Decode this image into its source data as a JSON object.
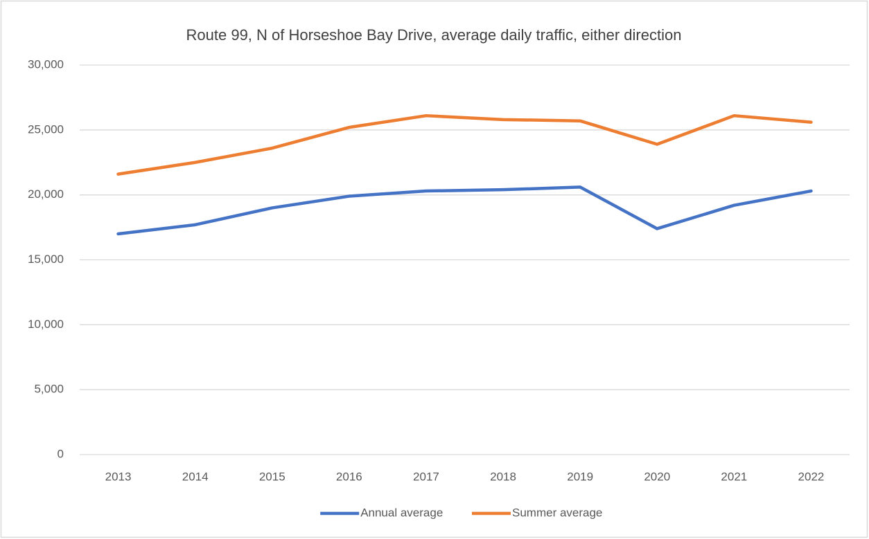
{
  "chart_data": {
    "type": "line",
    "title": "Route 99, N of Horseshoe Bay Drive, average daily traffic, either direction",
    "categories": [
      "2013",
      "2014",
      "2015",
      "2016",
      "2017",
      "2018",
      "2019",
      "2020",
      "2021",
      "2022"
    ],
    "series": [
      {
        "name": "Annual average",
        "color": "#4472c4",
        "values": [
          17000,
          17700,
          19000,
          19900,
          20300,
          20400,
          20600,
          17400,
          19200,
          20300
        ]
      },
      {
        "name": "Summer average",
        "color": "#ed7d31",
        "values": [
          21600,
          22500,
          23600,
          25200,
          26100,
          25800,
          25700,
          23900,
          26100,
          25600
        ]
      }
    ],
    "ylim": [
      0,
      30000
    ],
    "yticks": [
      0,
      {
        "value": 5000,
        "label": "5,000"
      },
      {
        "value": 10000,
        "label": "10,000"
      },
      {
        "value": 15000,
        "label": "15,000"
      },
      {
        "value": 20000,
        "label": "20,000"
      },
      {
        "value": 25000,
        "label": "25,000"
      },
      {
        "value": 30000,
        "label": "30,000"
      }
    ],
    "grid": true,
    "legend": "bottom"
  }
}
